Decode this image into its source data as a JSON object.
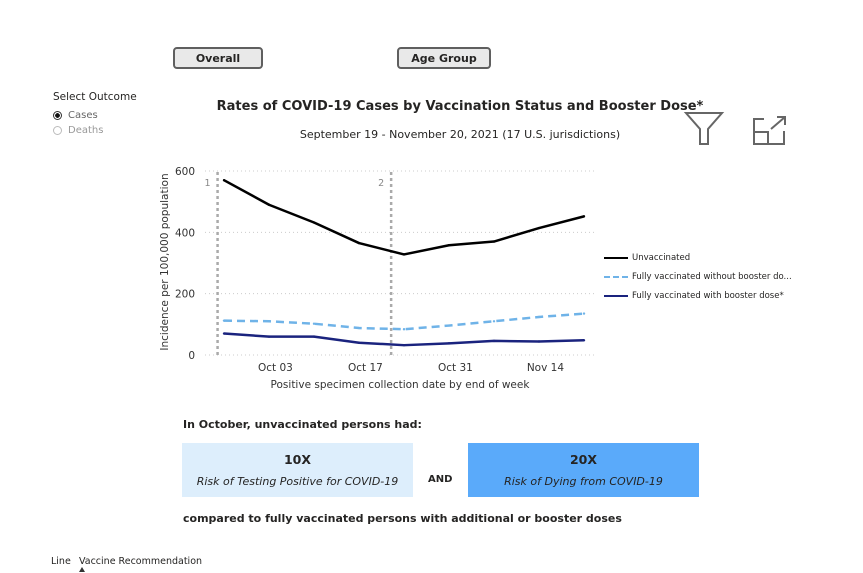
{
  "buttons": {
    "overall": "Overall",
    "age_group": "Age Group"
  },
  "outcome": {
    "title": "Select Outcome",
    "options": [
      {
        "label": "Cases",
        "selected": true
      },
      {
        "label": "Deaths",
        "selected": false
      }
    ]
  },
  "icons": [
    "filter-icon",
    "expand-icon"
  ],
  "chart_data": {
    "type": "line",
    "title": "Rates of COVID-19 Cases by Vaccination Status and Booster Dose*",
    "subtitle": "September 19 - November 20, 2021 (17 U.S. jurisdictions)",
    "xlabel": "Positive specimen collection date by end of week",
    "ylabel": "Incidence per 100,000 population",
    "ylim": [
      0,
      600
    ],
    "yticks": [
      0,
      200,
      400,
      600
    ],
    "xticks": [
      {
        "date": "2021-10-03",
        "label": "Oct 03"
      },
      {
        "date": "2021-10-17",
        "label": "Oct 17"
      },
      {
        "date": "2021-10-31",
        "label": "Oct 31"
      },
      {
        "date": "2021-11-14",
        "label": "Nov 14"
      }
    ],
    "grid": true,
    "legend": "right",
    "x": [
      "2021-09-25",
      "2021-10-02",
      "2021-10-09",
      "2021-10-16",
      "2021-10-23",
      "2021-10-30",
      "2021-11-06",
      "2021-11-13",
      "2021-11-20"
    ],
    "series": [
      {
        "name": "Unvaccinated",
        "color": "#000000",
        "dash": false,
        "values": [
          570,
          490,
          432,
          365,
          328,
          358,
          370,
          414,
          452
        ]
      },
      {
        "name": "Fully vaccinated without booster do...",
        "color": "#6fb3e8",
        "dash": true,
        "values": [
          112,
          110,
          102,
          88,
          84,
          96,
          110,
          124,
          135
        ]
      },
      {
        "name": "Fully vaccinated with booster dose*",
        "color": "#1a237e",
        "dash": false,
        "values": [
          70,
          60,
          60,
          40,
          32,
          38,
          46,
          44,
          48
        ]
      }
    ],
    "reference_lines": [
      {
        "date": "2021-09-24",
        "label": "1"
      },
      {
        "date": "2021-10-21",
        "label": "2"
      }
    ]
  },
  "summary": {
    "intro": "In October, unvaccinated persons had:",
    "cases": {
      "value": "10X",
      "label": "Risk of Testing Positive for COVID-19",
      "color": "#ddeefc"
    },
    "and": "AND",
    "deaths": {
      "value": "20X",
      "label": "Risk of Dying from COVID-19",
      "color": "#5aaafa"
    },
    "compare": "compared to fully vaccinated persons with additional or booster doses"
  },
  "tabs": [
    "Line",
    "Vaccine Recommendation"
  ]
}
